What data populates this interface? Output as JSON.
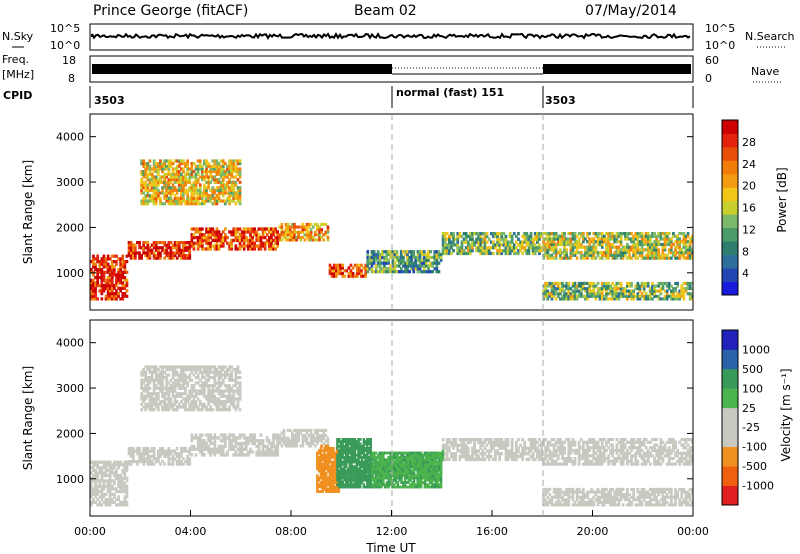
{
  "header": {
    "station": "Prince George (fitACF)",
    "beam": "Beam 02",
    "date": "07/May/2014"
  },
  "panels": {
    "nsky": {
      "label": "N.Sky",
      "right_label": "N.Search",
      "ticks": [
        "10^5",
        "10^0"
      ],
      "right_ticks": [
        "10^5",
        "10^0"
      ]
    },
    "freq": {
      "label": "Freq.",
      "unit": "[MHz]",
      "ticks": [
        "18",
        "8"
      ],
      "right_label": "Nave",
      "right_ticks": [
        "60",
        "0"
      ]
    },
    "cpid": {
      "label": "CPID",
      "segments": [
        {
          "text": "3503",
          "start_h": 0
        },
        {
          "text": "normal (fast)  151",
          "start_h": 12
        },
        {
          "text": "3503",
          "start_h": 18
        }
      ]
    }
  },
  "colorbars": {
    "power": {
      "label": "Power [dB]",
      "ticks": [
        "28",
        "24",
        "20",
        "16",
        "12",
        "8",
        "4"
      ],
      "colors": [
        "#1a1adc",
        "#2345b4",
        "#2e6e9c",
        "#2e7e6e",
        "#4a9a6a",
        "#7cb86a",
        "#c7d02e",
        "#f2c71a",
        "#f39c12",
        "#f07d0a",
        "#e8500a",
        "#e3230e",
        "#cc0000"
      ]
    },
    "velocity": {
      "label": "Velocity [m s⁻¹]",
      "ticks": [
        "1000",
        "500",
        "100",
        "25",
        "-25",
        "-100",
        "-500",
        "-1000"
      ],
      "colors": [
        "#2222bb",
        "#2a63a8",
        "#3a9a5a",
        "#4cb44c",
        "#c9c9c1",
        "#c9c9c1",
        "#f09020",
        "#f06010",
        "#e02020"
      ]
    }
  },
  "axes": {
    "ylabel": "Slant Range [km]",
    "xlabel": "Time UT",
    "x_ticks": [
      "00:00",
      "04:00",
      "08:00",
      "12:00",
      "16:00",
      "20:00",
      "00:00"
    ],
    "y_ticks": [
      "1000",
      "2000",
      "3000",
      "4000"
    ]
  },
  "chart_data": {
    "type": "heatmap",
    "x_range_hours": [
      0,
      24
    ],
    "y_range_km": [
      180,
      4500
    ],
    "grid": false,
    "mode_change_hours": [
      12,
      18
    ],
    "power_bands": [
      {
        "t0": 0,
        "t1": 1.5,
        "r0": 400,
        "r1": 1400,
        "level": 11
      },
      {
        "t0": 1.5,
        "t1": 4,
        "r0": 1300,
        "r1": 1700,
        "level": 11
      },
      {
        "t0": 4,
        "t1": 7.5,
        "r0": 1500,
        "r1": 2000,
        "level": 10
      },
      {
        "t0": 7.5,
        "t1": 9.5,
        "r0": 1700,
        "r1": 2100,
        "level": 8
      },
      {
        "t0": 9.5,
        "t1": 11,
        "r0": 900,
        "r1": 1200,
        "level": 10
      },
      {
        "t0": 11,
        "t1": 14,
        "r0": 1000,
        "r1": 1500,
        "level": 4
      },
      {
        "t0": 14,
        "t1": 18,
        "r0": 1400,
        "r1": 1900,
        "level": 5
      },
      {
        "t0": 18,
        "t1": 24,
        "r0": 1300,
        "r1": 1900,
        "level": 6
      },
      {
        "t0": 2,
        "t1": 6,
        "r0": 2500,
        "r1": 3500,
        "level": 7
      },
      {
        "t0": 18,
        "t1": 24,
        "r0": 400,
        "r1": 800,
        "level": 5
      }
    ],
    "velocity_regions": [
      {
        "t0": 9.0,
        "t1": 10.0,
        "r0": 700,
        "r1": 1700,
        "vel": -300
      },
      {
        "t0": 9.8,
        "t1": 11.2,
        "r0": 800,
        "r1": 1900,
        "vel": 150
      },
      {
        "t0": 11.2,
        "t1": 14.0,
        "r0": 800,
        "r1": 1600,
        "vel": 80
      }
    ]
  }
}
